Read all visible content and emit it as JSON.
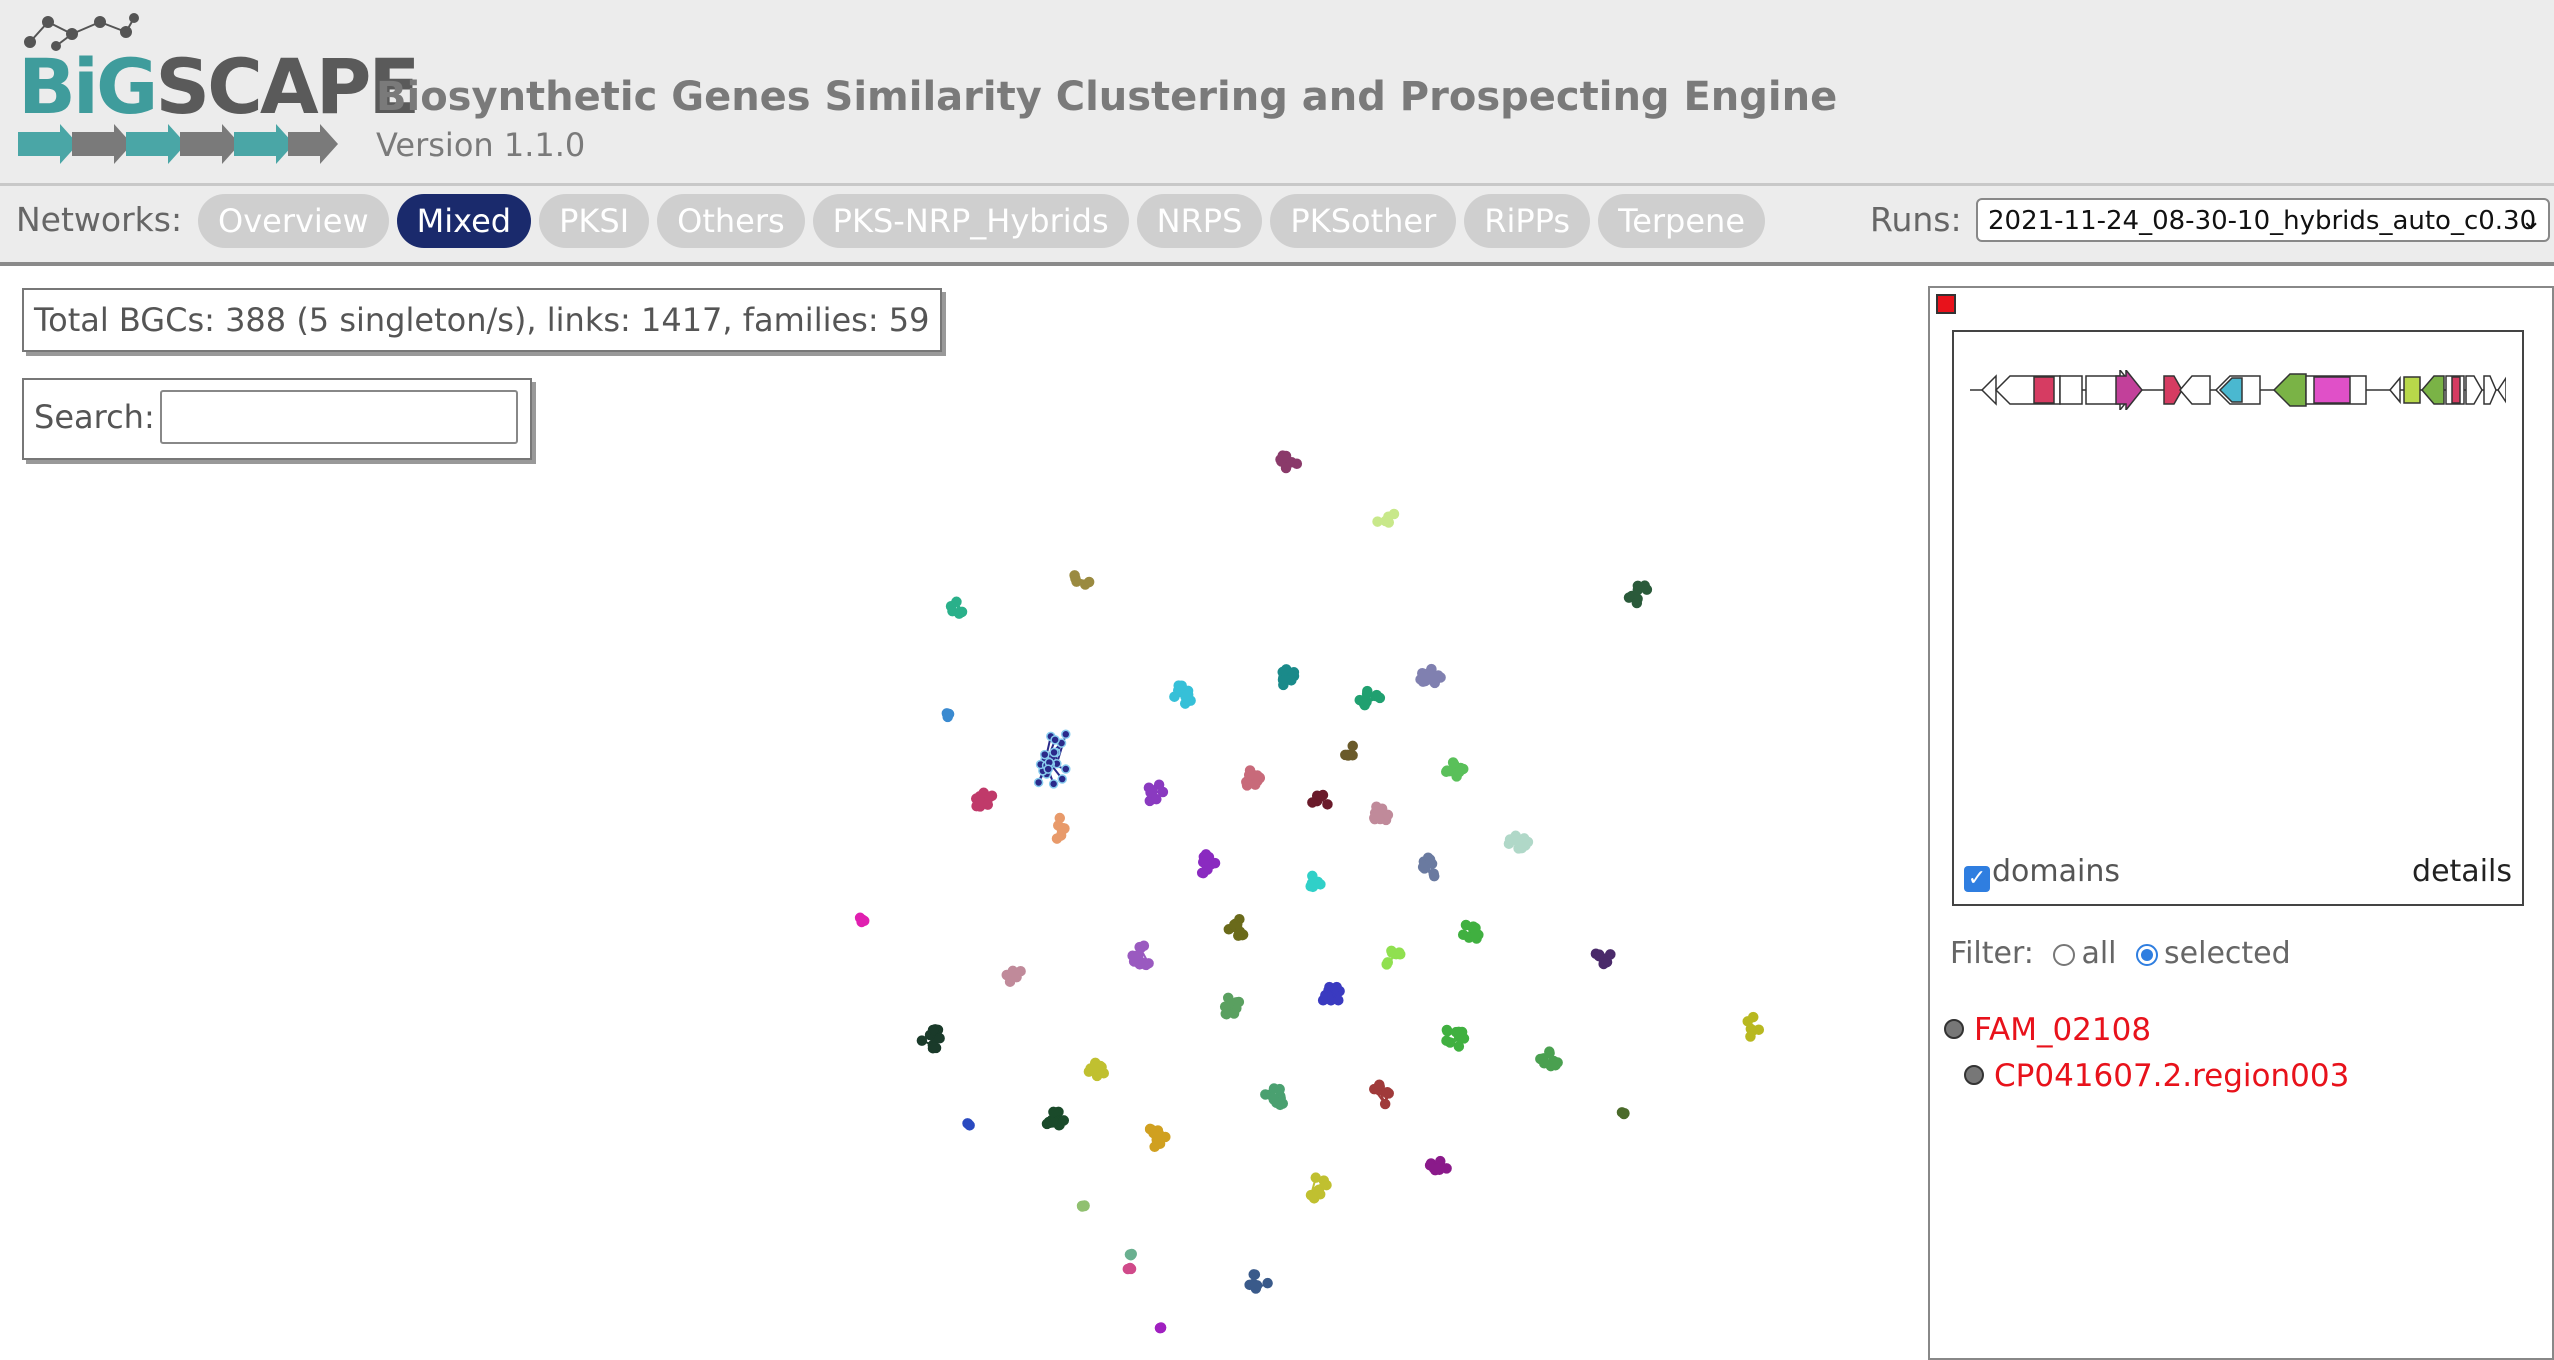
{
  "header": {
    "logo_text_big": "BiG",
    "logo_text_scape": "SCAPE",
    "title": "Biosynthetic Genes Similarity Clustering and Prospecting Engine",
    "version": "Version 1.1.0"
  },
  "nav": {
    "label": "Networks:",
    "tabs": [
      "Overview",
      "Mixed",
      "PKSI",
      "Others",
      "PKS-NRP_Hybrids",
      "NRPS",
      "PKSother",
      "RiPPs",
      "Terpene"
    ],
    "active_tab": "Mixed",
    "runs_label": "Runs:",
    "runs_value": "2021-11-24_08-30-10_hybrids_auto_c0.30"
  },
  "main": {
    "stats": "Total BGCs: 388 (5 singleton/s), links: 1417, families: 59",
    "search_label": "Search:",
    "search_value": ""
  },
  "side_panel": {
    "domains_label": "domains",
    "domains_checked": true,
    "details_label": "details",
    "filter_label": "Filter:",
    "filter_all": "all",
    "filter_selected": "selected",
    "filter_value": "selected",
    "family": "FAM_02108",
    "bgc": "CP041607.2.region003"
  },
  "colors": {
    "accent_nav": "#1a2a6c",
    "selected_text": "#e8121b",
    "logo_teal": "#3f9c9c"
  }
}
